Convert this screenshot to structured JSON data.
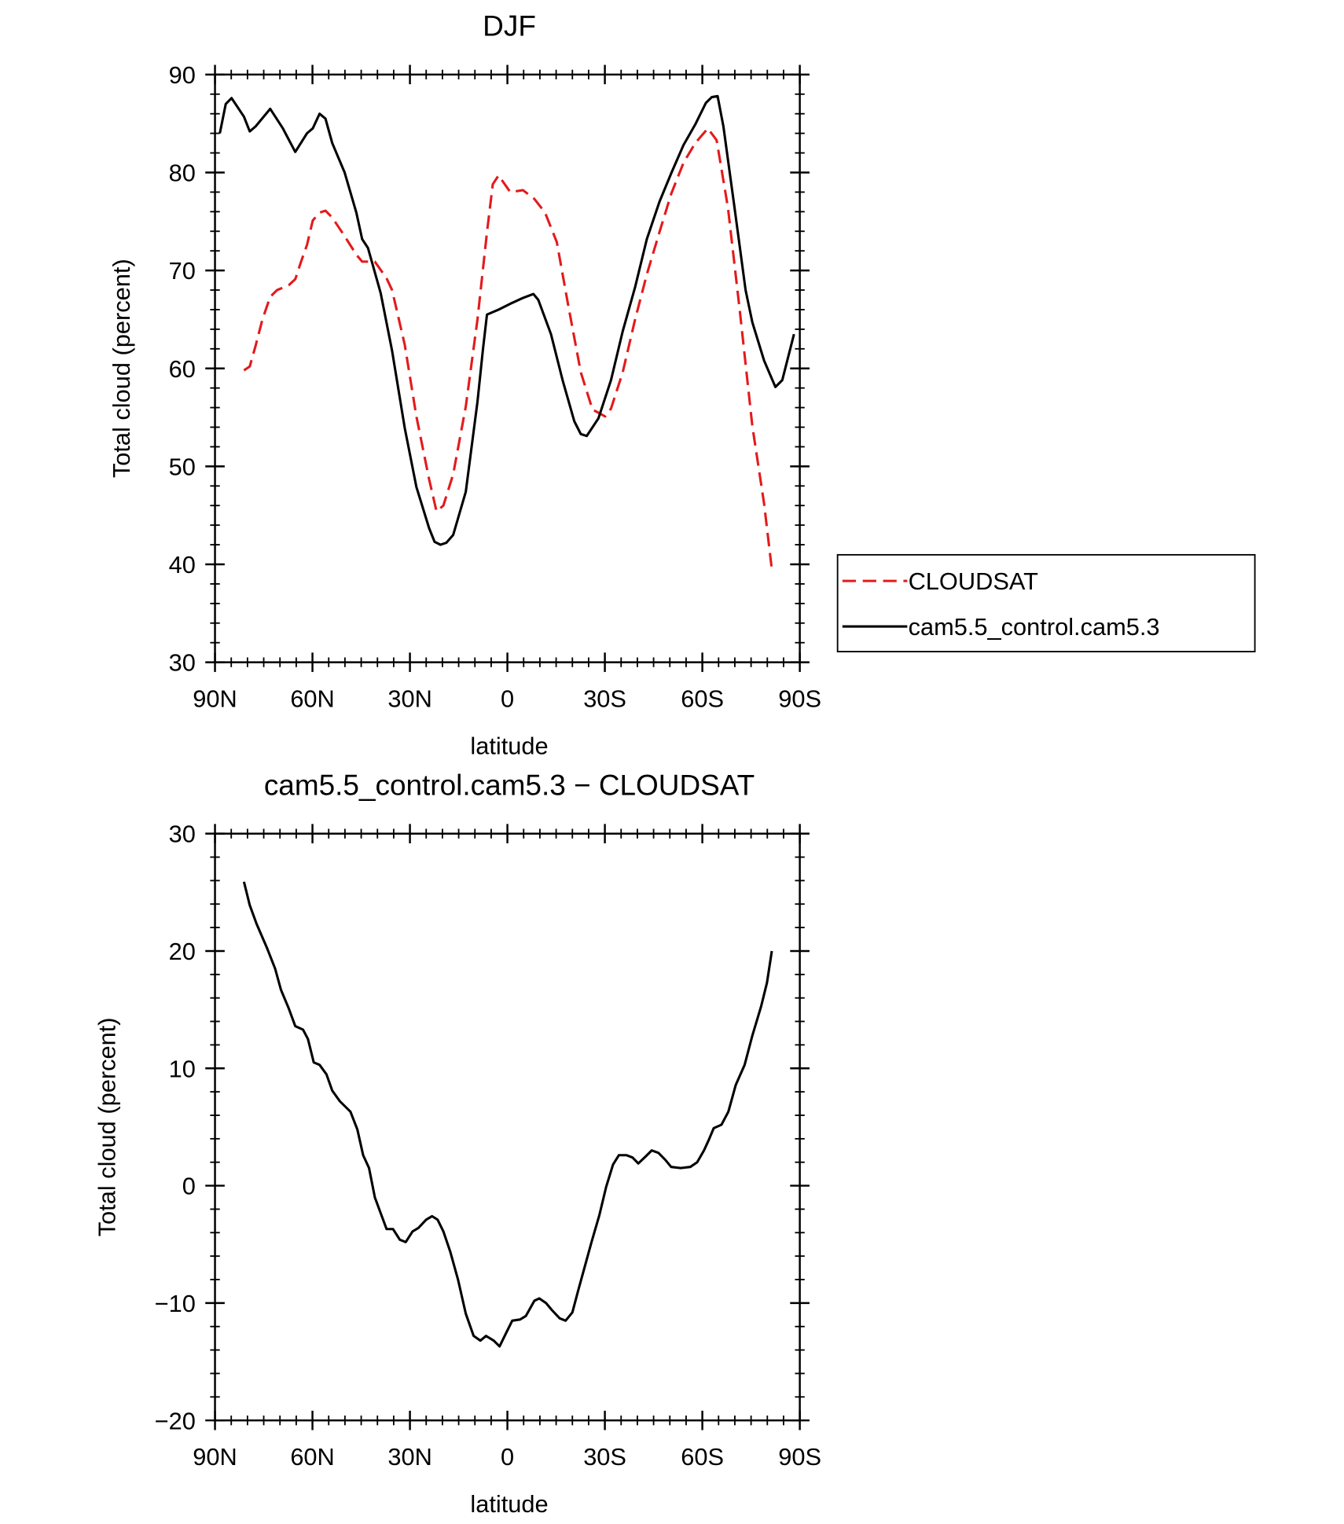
{
  "chart_data": [
    {
      "type": "line",
      "title": "DJF",
      "x_label": "latitude",
      "y_label": "Total cloud (percent)",
      "xlim": [
        90,
        -90
      ],
      "xticks": [
        {
          "value": 90,
          "label": "90N"
        },
        {
          "value": 60,
          "label": "60N"
        },
        {
          "value": 30,
          "label": "30N"
        },
        0,
        {
          "value": -30,
          "label": "30S"
        },
        {
          "value": -60,
          "label": "60S"
        },
        {
          "value": -90,
          "label": "90S"
        }
      ],
      "ylim": [
        30,
        90
      ],
      "yticks": [
        30,
        40,
        50,
        60,
        70,
        80,
        90
      ],
      "legend": "right",
      "series": [
        {
          "name": "CLOUDSAT",
          "color": "#e31a1c",
          "dash": true,
          "x": [
            81.1,
            79.3,
            77.5,
            75.4,
            73.0,
            70.9,
            67.3,
            65.3,
            63.5,
            61.7,
            59.9,
            57.8,
            56.0,
            53.9,
            50.1,
            46.5,
            44.7,
            40.8,
            37.2,
            35.5,
            31.6,
            28.0,
            24.1,
            21.8,
            19.7,
            16.7,
            12.8,
            9.2,
            6.3,
            4.5,
            2.7,
            -0.9,
            -4.8,
            -8.3,
            -11.6,
            -15.2,
            -18.7,
            -22.6,
            -26.2,
            -30.1,
            -31.9,
            -35.5,
            -39.3,
            -42.9,
            -46.8,
            -50.4,
            -54.2,
            -57.8,
            -61.7,
            -64.4,
            -67.9,
            -71.5,
            -75.4,
            -79.0,
            -81.4
          ],
          "values": [
            59.8,
            60.2,
            62.3,
            65.0,
            67.3,
            68.0,
            68.5,
            69.1,
            70.9,
            72.6,
            75.1,
            75.9,
            76.1,
            75.4,
            73.5,
            71.6,
            70.9,
            70.9,
            69.2,
            68.0,
            62.4,
            55.1,
            48.7,
            45.4,
            46.0,
            49.2,
            56.1,
            65.0,
            73.9,
            78.8,
            79.7,
            78.0,
            78.2,
            77.3,
            75.9,
            72.9,
            66.5,
            59.6,
            55.8,
            55.1,
            55.9,
            59.6,
            65.0,
            69.6,
            73.9,
            77.8,
            81.0,
            83.0,
            84.5,
            83.3,
            76.4,
            66.0,
            54.1,
            46.2,
            39.5
          ]
        },
        {
          "name": "cam5.5_control.cam5.3",
          "color": "#000000",
          "dash": false,
          "x": [
            88.5,
            86.7,
            84.9,
            81.1,
            79.3,
            77.5,
            73.0,
            69.1,
            65.3,
            61.7,
            59.9,
            57.8,
            56.0,
            53.9,
            50.1,
            46.5,
            44.7,
            42.9,
            39.0,
            35.5,
            31.6,
            28.0,
            24.1,
            22.4,
            20.6,
            18.8,
            16.7,
            12.8,
            9.2,
            7.5,
            6.3,
            2.7,
            -0.9,
            -4.8,
            -8.0,
            -9.5,
            -13.4,
            -17.0,
            -20.6,
            -22.6,
            -24.4,
            -28.0,
            -31.9,
            -35.5,
            -39.3,
            -42.9,
            -46.8,
            -50.4,
            -54.2,
            -57.8,
            -61.1,
            -62.9,
            -64.7,
            -66.5,
            -69.7,
            -73.3,
            -75.4,
            -79.0,
            -82.5,
            -84.6,
            -88.2
          ],
          "values": [
            84.0,
            87.0,
            87.6,
            85.7,
            84.2,
            84.7,
            86.5,
            84.5,
            82.1,
            84.0,
            84.5,
            86.0,
            85.5,
            83.0,
            80.0,
            75.9,
            73.2,
            72.3,
            67.7,
            61.8,
            53.9,
            47.9,
            43.7,
            42.3,
            42.0,
            42.2,
            43.0,
            47.4,
            56.6,
            62.0,
            65.5,
            66.0,
            66.6,
            67.2,
            67.6,
            67.0,
            63.5,
            58.8,
            54.6,
            53.3,
            53.1,
            54.9,
            58.8,
            63.8,
            68.3,
            73.2,
            77.0,
            79.9,
            82.8,
            84.9,
            87.1,
            87.7,
            87.8,
            84.7,
            76.9,
            68.0,
            64.7,
            60.8,
            58.1,
            58.8,
            63.5
          ]
        }
      ]
    },
    {
      "type": "line",
      "title": "cam5.5_control.cam5.3 − CLOUDSAT",
      "x_label": "latitude",
      "y_label": "Total cloud (percent)",
      "xlim": [
        90,
        -90
      ],
      "xticks": [
        {
          "value": 90,
          "label": "90N"
        },
        {
          "value": 60,
          "label": "60N"
        },
        {
          "value": 30,
          "label": "30N"
        },
        0,
        {
          "value": -30,
          "label": "30S"
        },
        {
          "value": -60,
          "label": "60S"
        },
        {
          "value": -90,
          "label": "90S"
        }
      ],
      "ylim": [
        -20,
        30
      ],
      "yticks": [
        {
          "value": -20,
          "label": "−20"
        },
        {
          "value": -10,
          "label": "−10"
        },
        0,
        10,
        20,
        30
      ],
      "series": [
        {
          "color": "#000000",
          "dash": false,
          "x": [
            81.1,
            79.3,
            77.2,
            73.9,
            71.5,
            69.7,
            67.3,
            65.3,
            62.9,
            61.4,
            59.6,
            57.8,
            55.7,
            53.9,
            51.6,
            48.3,
            46.2,
            44.4,
            42.6,
            40.8,
            37.2,
            35.2,
            33.1,
            31.3,
            29.2,
            27.4,
            25.0,
            23.2,
            21.5,
            19.7,
            17.6,
            15.2,
            12.8,
            10.4,
            8.3,
            6.6,
            4.2,
            2.4,
            0.3,
            -1.5,
            -3.9,
            -5.7,
            -8.3,
            -9.8,
            -11.9,
            -13.7,
            -16.1,
            -17.9,
            -20.0,
            -21.8,
            -23.8,
            -25.9,
            -28.3,
            -30.4,
            -32.5,
            -34.3,
            -36.7,
            -38.5,
            -40.3,
            -42.6,
            -44.4,
            -46.5,
            -48.6,
            -50.4,
            -53.3,
            -56.3,
            -58.4,
            -60.5,
            -62.0,
            -63.5,
            -65.9,
            -68.0,
            -70.3,
            -73.0,
            -75.4,
            -78.1,
            -79.9,
            -81.4
          ],
          "values": [
            25.9,
            23.9,
            22.3,
            20.2,
            18.5,
            16.7,
            15.1,
            13.6,
            13.3,
            12.5,
            10.5,
            10.3,
            9.5,
            8.1,
            7.2,
            6.3,
            4.8,
            2.6,
            1.5,
            -1.0,
            -3.7,
            -3.7,
            -4.6,
            -4.8,
            -3.9,
            -3.6,
            -2.9,
            -2.6,
            -2.9,
            -3.9,
            -5.6,
            -8.0,
            -10.9,
            -12.8,
            -13.2,
            -12.8,
            -13.2,
            -13.7,
            -12.5,
            -11.5,
            -11.4,
            -11.1,
            -9.8,
            -9.6,
            -10.0,
            -10.6,
            -11.3,
            -11.5,
            -10.8,
            -8.9,
            -6.9,
            -4.8,
            -2.5,
            -0.1,
            1.8,
            2.6,
            2.6,
            2.4,
            1.9,
            2.5,
            3.0,
            2.8,
            2.2,
            1.6,
            1.5,
            1.6,
            2.0,
            3.0,
            3.9,
            4.9,
            5.2,
            6.3,
            8.6,
            10.3,
            12.8,
            15.3,
            17.3,
            20.0
          ]
        }
      ]
    }
  ]
}
